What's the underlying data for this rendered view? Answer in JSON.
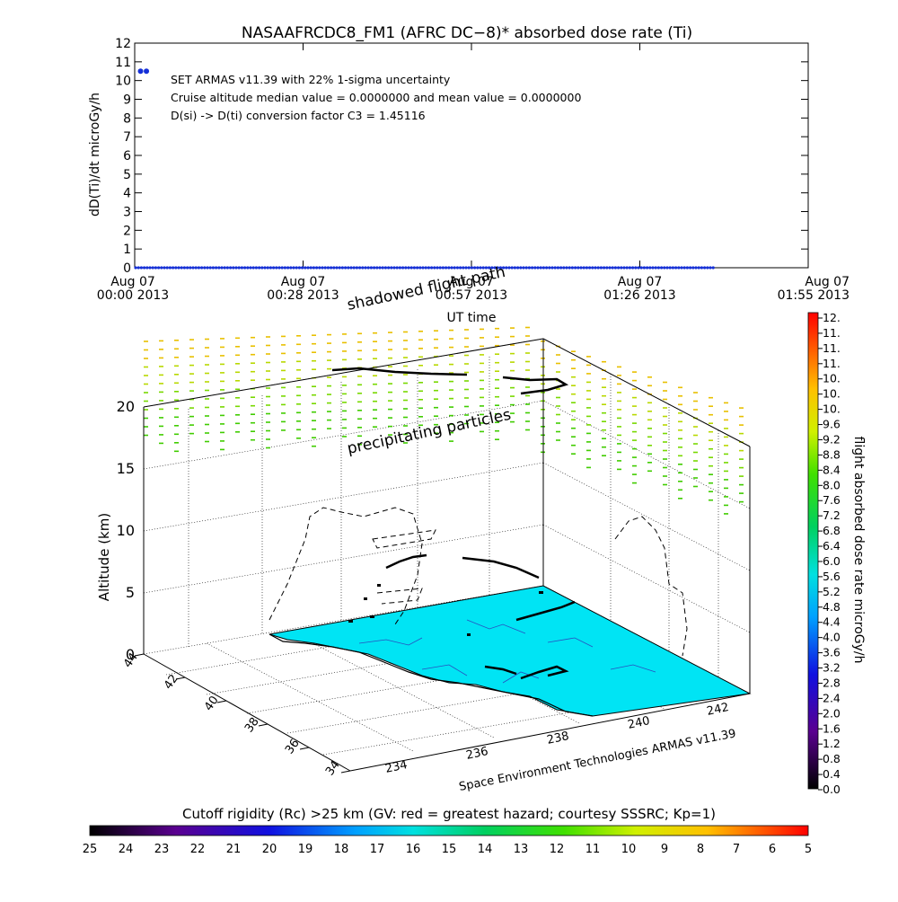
{
  "top_chart": {
    "title": "NASAAFRCDC8_FM1 (AFRC DC−8)* absorbed dose rate (Ti)",
    "ylabel": "dD(Ti)/dt microGy/h",
    "xlabel": "UT time",
    "yticks": [
      "0",
      "1",
      "2",
      "3",
      "4",
      "5",
      "6",
      "7",
      "8",
      "9",
      "10",
      "11",
      "12"
    ],
    "xticks": [
      {
        "line1": "Aug 07",
        "line2": "00:00 2013"
      },
      {
        "line1": "Aug 07",
        "line2": "00:28 2013"
      },
      {
        "line1": "Aug 07",
        "line2": "00:57 2013"
      },
      {
        "line1": "Aug 07",
        "line2": "01:26 2013"
      },
      {
        "line1": "Aug 07",
        "line2": "01:55 2013"
      }
    ],
    "annotations": [
      "SET ARMAS v11.39 with 22% 1-sigma uncertainty",
      "Cruise altitude median value = 0.0000000 and mean value = 0.0000000",
      "D(si) -> D(ti) conversion factor C3 = 1.45116"
    ],
    "series_color": "#1530d8"
  },
  "globe": {
    "label_shadowed": "shadowed flight path",
    "label_precip": "precipitating particles",
    "zlabel": "Altitude (km)",
    "zticks": [
      "0",
      "5",
      "10",
      "15",
      "20"
    ],
    "lat_ticks": [
      "44",
      "42",
      "40",
      "38",
      "36",
      "34"
    ],
    "lon_ticks": [
      "234",
      "236",
      "238",
      "240",
      "242"
    ],
    "credit": "Space Environment Technologies ARMAS v11.39",
    "surface_color": "#00e0f0"
  },
  "dose_colorbar": {
    "label": "flight absorbed dose rate microGy/h",
    "ticks": [
      "12.",
      "11.",
      "11.",
      "11.",
      "10.",
      "10.",
      "10.",
      "9.6",
      "9.2",
      "8.8",
      "8.4",
      "8.0",
      "7.6",
      "7.2",
      "6.8",
      "6.4",
      "6.0",
      "5.6",
      "5.2",
      "4.8",
      "4.4",
      "4.0",
      "3.6",
      "3.2",
      "2.8",
      "2.4",
      "2.0",
      "1.6",
      "1.2",
      "0.8",
      "0.4",
      "0.0"
    ]
  },
  "rigidity_colorbar": {
    "label": "Cutoff rigidity (Rc) >25 km (GV: red = greatest hazard; courtesy SSSRC; Kp=1)",
    "ticks": [
      "25",
      "24",
      "23",
      "22",
      "21",
      "20",
      "19",
      "18",
      "17",
      "16",
      "15",
      "14",
      "13",
      "12",
      "11",
      "10",
      "9",
      "8",
      "7",
      "6",
      "5"
    ]
  },
  "chart_data": {
    "type": "scatter",
    "title": "NASAAFRCDC8_FM1 (AFRC DC−8)* absorbed dose rate (Ti)",
    "xlabel": "UT time",
    "ylabel": "dD(Ti)/dt microGy/h",
    "ylim": [
      0,
      12
    ],
    "xlim": [
      "2013-08-07 00:00",
      "2013-08-07 01:55"
    ],
    "series": [
      {
        "values": [
          {
            "x": "2013-08-07 00:01",
            "y": 10.5
          },
          {
            "x": "2013-08-07 00:02",
            "y": 10.5
          },
          {
            "x_start": "2013-08-07 00:00",
            "x_end": "2013-08-07 01:39",
            "y": 0.0
          }
        ]
      }
    ]
  }
}
